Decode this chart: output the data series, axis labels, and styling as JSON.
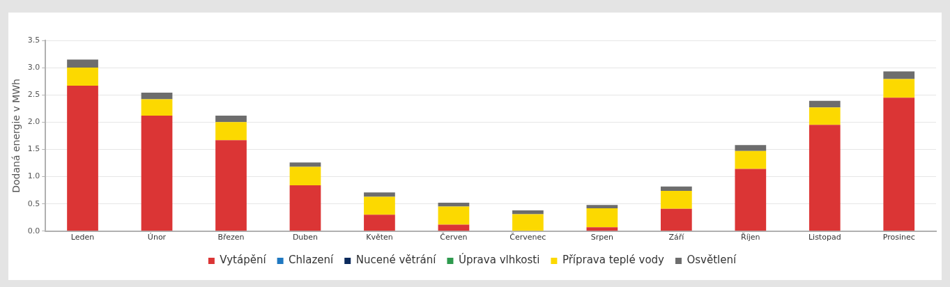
{
  "chart_data": {
    "type": "bar",
    "stacked": true,
    "ylabel": "Dodaná energie v MWh",
    "categories": [
      "Leden",
      "Únor",
      "Březen",
      "Duben",
      "Květen",
      "Červen",
      "Červenec",
      "Srpen",
      "Září",
      "Říjen",
      "Listopad",
      "Prosinec"
    ],
    "series": [
      {
        "name": "Vytápění",
        "color": "#db3535",
        "values": [
          2.67,
          2.12,
          1.67,
          0.84,
          0.3,
          0.12,
          0,
          0.07,
          0.41,
          1.14,
          1.95,
          2.45
        ]
      },
      {
        "name": "Chlazení",
        "color": "#1f78c1",
        "values": [
          0,
          0,
          0,
          0,
          0,
          0,
          0,
          0,
          0,
          0,
          0,
          0
        ]
      },
      {
        "name": "Nucené větrání",
        "color": "#0b2a5c",
        "values": [
          0,
          0,
          0,
          0,
          0,
          0,
          0,
          0,
          0,
          0,
          0,
          0
        ]
      },
      {
        "name": "Úprava vlhkosti",
        "color": "#2e9a4e",
        "values": [
          0,
          0,
          0,
          0,
          0,
          0,
          0,
          0,
          0,
          0,
          0,
          0
        ]
      },
      {
        "name": "Příprava teplé vody",
        "color": "#fcd900",
        "values": [
          0.33,
          0.3,
          0.33,
          0.34,
          0.33,
          0.33,
          0.31,
          0.35,
          0.33,
          0.33,
          0.32,
          0.34
        ]
      },
      {
        "name": "Osvětlení",
        "color": "#6d6d6d",
        "values": [
          0.15,
          0.12,
          0.12,
          0.08,
          0.08,
          0.07,
          0.07,
          0.06,
          0.08,
          0.11,
          0.12,
          0.14
        ]
      }
    ],
    "ylim": [
      0,
      3.5
    ],
    "yticks": [
      {
        "value": 0,
        "label": "0.0"
      },
      0.5,
      {
        "value": 1,
        "label": "1.0"
      },
      1.5,
      {
        "value": 2,
        "label": "2.0"
      },
      2.5,
      {
        "value": 3,
        "label": "3.0"
      },
      3.5
    ],
    "grid": "y",
    "legend": "bottom"
  }
}
